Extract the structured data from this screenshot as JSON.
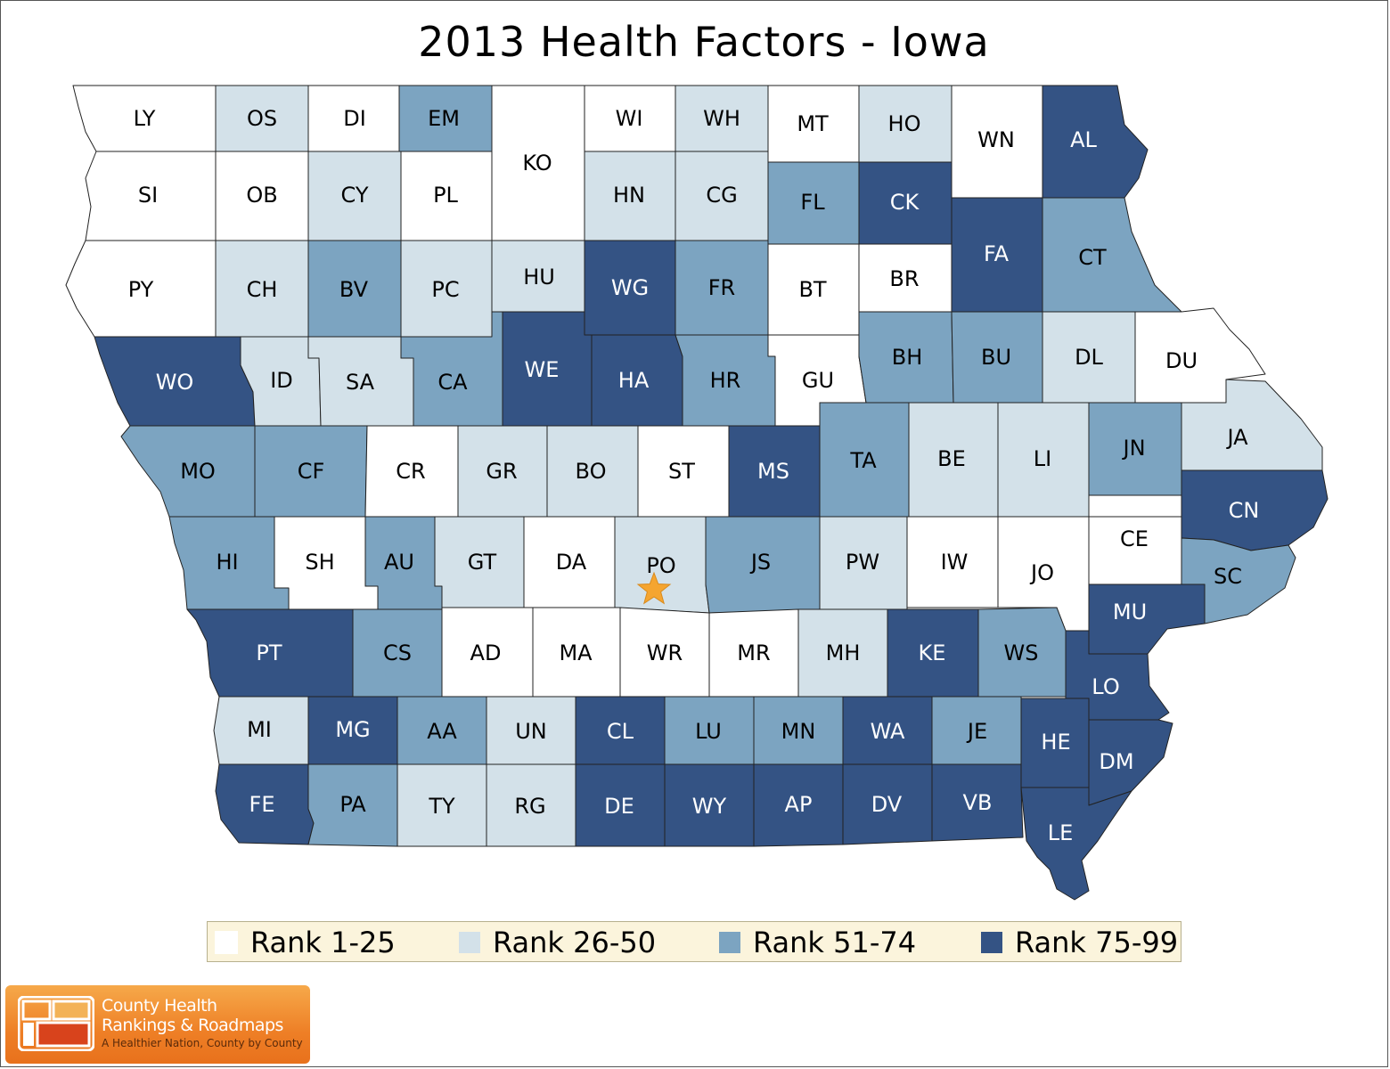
{
  "title": "2013 Health Factors - Iowa",
  "colors": {
    "rank_1_25": "#ffffff",
    "rank_26_50": "#d3e1e9",
    "rank_51_74": "#7ca4c1",
    "rank_75_99": "#345384",
    "border": "#222222",
    "star": "#f5a530"
  },
  "legend": [
    {
      "label": "Rank 1-25",
      "color": "#ffffff"
    },
    {
      "label": "Rank 26-50",
      "color": "#d3e1e9"
    },
    {
      "label": "Rank 51-74",
      "color": "#7ca4c1"
    },
    {
      "label": "Rank 75-99",
      "color": "#345384"
    }
  ],
  "logo": {
    "line1": "County Health",
    "line2": "Rankings & Roadmaps",
    "tagline": "A Healthier Nation, County by County"
  },
  "marker": {
    "county": "PO",
    "icon": "star-icon"
  },
  "counties": [
    {
      "abbr": "LY",
      "rank_band": 1
    },
    {
      "abbr": "OS",
      "rank_band": 2
    },
    {
      "abbr": "DI",
      "rank_band": 1
    },
    {
      "abbr": "EM",
      "rank_band": 3
    },
    {
      "abbr": "KO",
      "rank_band": 1
    },
    {
      "abbr": "WI",
      "rank_band": 1
    },
    {
      "abbr": "WH",
      "rank_band": 2
    },
    {
      "abbr": "MT",
      "rank_band": 1
    },
    {
      "abbr": "HO",
      "rank_band": 2
    },
    {
      "abbr": "WN",
      "rank_band": 1
    },
    {
      "abbr": "AL",
      "rank_band": 4
    },
    {
      "abbr": "SI",
      "rank_band": 1
    },
    {
      "abbr": "OB",
      "rank_band": 1
    },
    {
      "abbr": "CY",
      "rank_band": 2
    },
    {
      "abbr": "PL",
      "rank_band": 1
    },
    {
      "abbr": "HN",
      "rank_band": 2
    },
    {
      "abbr": "CG",
      "rank_band": 2
    },
    {
      "abbr": "FL",
      "rank_band": 3
    },
    {
      "abbr": "CK",
      "rank_band": 4
    },
    {
      "abbr": "FA",
      "rank_band": 4
    },
    {
      "abbr": "CT",
      "rank_band": 3
    },
    {
      "abbr": "PY",
      "rank_band": 1
    },
    {
      "abbr": "CH",
      "rank_band": 2
    },
    {
      "abbr": "BV",
      "rank_band": 3
    },
    {
      "abbr": "PC",
      "rank_band": 2
    },
    {
      "abbr": "HU",
      "rank_band": 2
    },
    {
      "abbr": "WG",
      "rank_band": 4
    },
    {
      "abbr": "FR",
      "rank_band": 3
    },
    {
      "abbr": "BT",
      "rank_band": 1
    },
    {
      "abbr": "BR",
      "rank_band": 1
    },
    {
      "abbr": "WO",
      "rank_band": 4
    },
    {
      "abbr": "ID",
      "rank_band": 2
    },
    {
      "abbr": "SA",
      "rank_band": 2
    },
    {
      "abbr": "CA",
      "rank_band": 3
    },
    {
      "abbr": "WE",
      "rank_band": 4
    },
    {
      "abbr": "HA",
      "rank_band": 4
    },
    {
      "abbr": "HR",
      "rank_band": 3
    },
    {
      "abbr": "GU",
      "rank_band": 1
    },
    {
      "abbr": "BH",
      "rank_band": 3
    },
    {
      "abbr": "BU",
      "rank_band": 3
    },
    {
      "abbr": "DL",
      "rank_band": 2
    },
    {
      "abbr": "DU",
      "rank_band": 1
    },
    {
      "abbr": "MO",
      "rank_band": 3
    },
    {
      "abbr": "CF",
      "rank_band": 3
    },
    {
      "abbr": "CR",
      "rank_band": 1
    },
    {
      "abbr": "GR",
      "rank_band": 2
    },
    {
      "abbr": "BO",
      "rank_band": 2
    },
    {
      "abbr": "ST",
      "rank_band": 1
    },
    {
      "abbr": "MS",
      "rank_band": 4
    },
    {
      "abbr": "TA",
      "rank_band": 3
    },
    {
      "abbr": "BE",
      "rank_band": 2
    },
    {
      "abbr": "LI",
      "rank_band": 2
    },
    {
      "abbr": "JN",
      "rank_band": 3
    },
    {
      "abbr": "JA",
      "rank_band": 2
    },
    {
      "abbr": "CN",
      "rank_band": 4
    },
    {
      "abbr": "HI",
      "rank_band": 3
    },
    {
      "abbr": "SH",
      "rank_band": 1
    },
    {
      "abbr": "AU",
      "rank_band": 3
    },
    {
      "abbr": "GT",
      "rank_band": 2
    },
    {
      "abbr": "DA",
      "rank_band": 1
    },
    {
      "abbr": "PO",
      "rank_band": 2
    },
    {
      "abbr": "JS",
      "rank_band": 3
    },
    {
      "abbr": "PW",
      "rank_band": 2
    },
    {
      "abbr": "IW",
      "rank_band": 1
    },
    {
      "abbr": "JO",
      "rank_band": 1
    },
    {
      "abbr": "CE",
      "rank_band": 1
    },
    {
      "abbr": "SC",
      "rank_band": 3
    },
    {
      "abbr": "PT",
      "rank_band": 4
    },
    {
      "abbr": "CS",
      "rank_band": 3
    },
    {
      "abbr": "AD",
      "rank_band": 1
    },
    {
      "abbr": "MA",
      "rank_band": 1
    },
    {
      "abbr": "WR",
      "rank_band": 1
    },
    {
      "abbr": "MR",
      "rank_band": 1
    },
    {
      "abbr": "MH",
      "rank_band": 2
    },
    {
      "abbr": "KE",
      "rank_band": 4
    },
    {
      "abbr": "WS",
      "rank_band": 3
    },
    {
      "abbr": "MU",
      "rank_band": 4
    },
    {
      "abbr": "LO",
      "rank_band": 4
    },
    {
      "abbr": "MI",
      "rank_band": 2
    },
    {
      "abbr": "MG",
      "rank_band": 4
    },
    {
      "abbr": "AA",
      "rank_band": 3
    },
    {
      "abbr": "UN",
      "rank_band": 2
    },
    {
      "abbr": "CL",
      "rank_band": 4
    },
    {
      "abbr": "LU",
      "rank_band": 3
    },
    {
      "abbr": "MN",
      "rank_band": 3
    },
    {
      "abbr": "WA",
      "rank_band": 4
    },
    {
      "abbr": "JE",
      "rank_band": 3
    },
    {
      "abbr": "HE",
      "rank_band": 4
    },
    {
      "abbr": "DM",
      "rank_band": 4
    },
    {
      "abbr": "FE",
      "rank_band": 4
    },
    {
      "abbr": "PA",
      "rank_band": 3
    },
    {
      "abbr": "TY",
      "rank_band": 2
    },
    {
      "abbr": "RG",
      "rank_band": 2
    },
    {
      "abbr": "DE",
      "rank_band": 4
    },
    {
      "abbr": "WY",
      "rank_band": 4
    },
    {
      "abbr": "AP",
      "rank_band": 4
    },
    {
      "abbr": "DV",
      "rank_band": 4
    },
    {
      "abbr": "VB",
      "rank_band": 4
    },
    {
      "abbr": "LE",
      "rank_band": 4
    }
  ]
}
